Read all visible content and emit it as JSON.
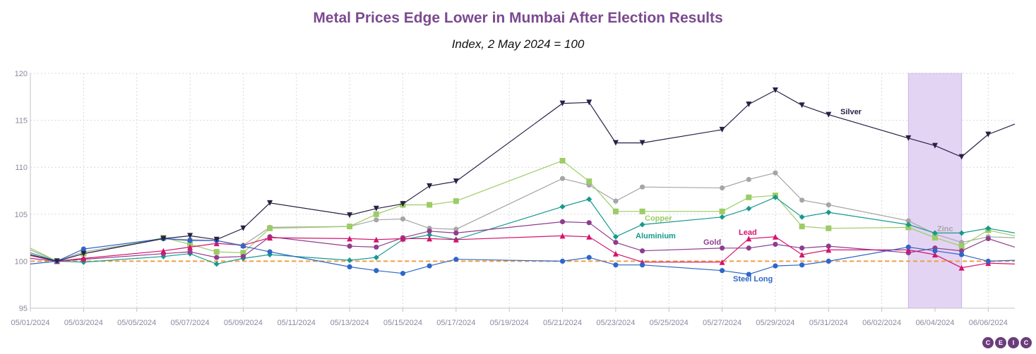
{
  "chart_data": {
    "type": "line",
    "title": "Metal Prices Edge Lower in Mumbai After Election Results",
    "subtitle": "Index, 2 May 2024 = 100",
    "ylim": [
      95,
      120
    ],
    "yticks": [
      95,
      100,
      105,
      110,
      115,
      120
    ],
    "xlim": [
      "05/01/2024",
      "06/07/2024"
    ],
    "xticks": [
      "05/01/2024",
      "05/03/2024",
      "05/05/2024",
      "05/07/2024",
      "05/09/2024",
      "05/11/2024",
      "05/13/2024",
      "05/15/2024",
      "05/17/2024",
      "05/19/2024",
      "05/21/2024",
      "05/23/2024",
      "05/25/2024",
      "05/27/2024",
      "05/29/2024",
      "05/31/2024",
      "06/02/2024",
      "06/04/2024",
      "06/06/2024"
    ],
    "grid": true,
    "reference_line": 100,
    "highlight": [
      "06/03/2024",
      "06/05/2024"
    ],
    "series": [
      {
        "name": "Silver",
        "color": "#2a1f45",
        "marker": "triangle-down",
        "points": [
          [
            "05/01/2024",
            100.7
          ],
          [
            "05/02/2024",
            100
          ],
          [
            "05/03/2024",
            100.8
          ],
          [
            "05/06/2024",
            102.4
          ],
          [
            "05/07/2024",
            102.7
          ],
          [
            "05/08/2024",
            102.3
          ],
          [
            "05/09/2024",
            103.5
          ],
          [
            "05/10/2024",
            106.2
          ],
          [
            "05/13/2024",
            104.9
          ],
          [
            "05/14/2024",
            105.6
          ],
          [
            "05/15/2024",
            106.1
          ],
          [
            "05/16/2024",
            108
          ],
          [
            "05/17/2024",
            108.5
          ],
          [
            "05/21/2024",
            116.8
          ],
          [
            "05/22/2024",
            116.9
          ],
          [
            "05/23/2024",
            112.6
          ],
          [
            "05/24/2024",
            112.6
          ],
          [
            "05/27/2024",
            114
          ],
          [
            "05/28/2024",
            116.7
          ],
          [
            "05/29/2024",
            118.2
          ],
          [
            "05/30/2024",
            116.6
          ],
          [
            "05/31/2024",
            115.6
          ],
          [
            "06/03/2024",
            113.1
          ],
          [
            "06/04/2024",
            112.3
          ],
          [
            "06/05/2024",
            111.1
          ],
          [
            "06/06/2024",
            113.5
          ],
          [
            "06/07/2024",
            114.6
          ]
        ]
      },
      {
        "name": "Copper",
        "color": "#9ccc65",
        "marker": "square",
        "points": [
          [
            "05/01/2024",
            101.4
          ],
          [
            "05/02/2024",
            100
          ],
          [
            "05/03/2024",
            100.8
          ],
          [
            "05/06/2024",
            102.5
          ],
          [
            "05/07/2024",
            101.8
          ],
          [
            "05/08/2024",
            101
          ],
          [
            "05/09/2024",
            100.9
          ],
          [
            "05/10/2024",
            103.5
          ],
          [
            "05/13/2024",
            103.7
          ],
          [
            "05/14/2024",
            105
          ],
          [
            "05/15/2024",
            106
          ],
          [
            "05/16/2024",
            106
          ],
          [
            "05/17/2024",
            106.4
          ],
          [
            "05/21/2024",
            110.7
          ],
          [
            "05/22/2024",
            108.5
          ],
          [
            "05/23/2024",
            105.3
          ],
          [
            "05/24/2024",
            105.3
          ],
          [
            "05/27/2024",
            105.3
          ],
          [
            "05/28/2024",
            106.8
          ],
          [
            "05/29/2024",
            107
          ],
          [
            "05/30/2024",
            103.7
          ],
          [
            "05/31/2024",
            103.5
          ],
          [
            "06/03/2024",
            103.6
          ],
          [
            "06/04/2024",
            102.5
          ],
          [
            "06/05/2024",
            101.6
          ],
          [
            "06/06/2024",
            103.3
          ],
          [
            "06/07/2024",
            102.7
          ]
        ]
      },
      {
        "name": "Zinc",
        "color": "#a6a6a6",
        "marker": "circle",
        "points": [
          [
            "05/01/2024",
            101.2
          ],
          [
            "05/02/2024",
            100
          ],
          [
            "05/03/2024",
            101
          ],
          [
            "05/06/2024",
            102.4
          ],
          [
            "05/07/2024",
            102.3
          ],
          [
            "05/08/2024",
            102.2
          ],
          [
            "05/09/2024",
            101.7
          ],
          [
            "05/10/2024",
            103.6
          ],
          [
            "05/13/2024",
            103.7
          ],
          [
            "05/14/2024",
            104.4
          ],
          [
            "05/15/2024",
            104.5
          ],
          [
            "05/16/2024",
            103.5
          ],
          [
            "05/17/2024",
            103.4
          ],
          [
            "05/21/2024",
            108.8
          ],
          [
            "05/22/2024",
            108.1
          ],
          [
            "05/23/2024",
            106.4
          ],
          [
            "05/24/2024",
            107.9
          ],
          [
            "05/27/2024",
            107.8
          ],
          [
            "05/28/2024",
            108.7
          ],
          [
            "05/29/2024",
            109.4
          ],
          [
            "05/30/2024",
            106.5
          ],
          [
            "05/31/2024",
            106
          ],
          [
            "06/03/2024",
            104.3
          ],
          [
            "06/04/2024",
            102.9
          ],
          [
            "06/05/2024",
            102
          ],
          [
            "06/06/2024",
            102.6
          ],
          [
            "06/07/2024",
            102.5
          ]
        ]
      },
      {
        "name": "Aluminium",
        "color": "#17998f",
        "marker": "diamond",
        "points": [
          [
            "05/01/2024",
            100.9
          ],
          [
            "05/02/2024",
            100
          ],
          [
            "05/03/2024",
            99.9
          ],
          [
            "05/06/2024",
            100.5
          ],
          [
            "05/07/2024",
            100.8
          ],
          [
            "05/08/2024",
            99.7
          ],
          [
            "05/09/2024",
            100.3
          ],
          [
            "05/10/2024",
            100.7
          ],
          [
            "05/13/2024",
            100.1
          ],
          [
            "05/14/2024",
            100.4
          ],
          [
            "05/15/2024",
            102.3
          ],
          [
            "05/16/2024",
            102.8
          ],
          [
            "05/17/2024",
            102.3
          ],
          [
            "05/21/2024",
            105.8
          ],
          [
            "05/22/2024",
            106.6
          ],
          [
            "05/23/2024",
            102.6
          ],
          [
            "05/24/2024",
            103.9
          ],
          [
            "05/27/2024",
            104.7
          ],
          [
            "05/28/2024",
            105.6
          ],
          [
            "05/29/2024",
            106.8
          ],
          [
            "05/30/2024",
            104.7
          ],
          [
            "05/31/2024",
            105.2
          ],
          [
            "06/03/2024",
            103.9
          ],
          [
            "06/04/2024",
            103
          ],
          [
            "06/05/2024",
            103
          ],
          [
            "06/06/2024",
            103.5
          ],
          [
            "06/07/2024",
            103
          ]
        ]
      },
      {
        "name": "Lead",
        "color": "#d6136d",
        "marker": "triangle-up",
        "points": [
          [
            "05/01/2024",
            100.6
          ],
          [
            "05/02/2024",
            100
          ],
          [
            "05/03/2024",
            100.3
          ],
          [
            "05/06/2024",
            101.1
          ],
          [
            "05/07/2024",
            101.5
          ],
          [
            "05/08/2024",
            101.9
          ],
          [
            "05/09/2024",
            101.7
          ],
          [
            "05/10/2024",
            102.5
          ],
          [
            "05/13/2024",
            102.4
          ],
          [
            "05/14/2024",
            102.3
          ],
          [
            "05/15/2024",
            102.4
          ],
          [
            "05/16/2024",
            102.4
          ],
          [
            "05/17/2024",
            102.3
          ],
          [
            "05/21/2024",
            102.7
          ],
          [
            "05/22/2024",
            102.6
          ],
          [
            "05/23/2024",
            100.8
          ],
          [
            "05/24/2024",
            99.9
          ],
          [
            "05/27/2024",
            99.9
          ],
          [
            "05/28/2024",
            102.4
          ],
          [
            "05/29/2024",
            102.6
          ],
          [
            "05/30/2024",
            100.7
          ],
          [
            "05/31/2024",
            101.2
          ],
          [
            "06/03/2024",
            101.2
          ],
          [
            "06/04/2024",
            100.7
          ],
          [
            "06/05/2024",
            99.3
          ],
          [
            "06/06/2024",
            99.8
          ],
          [
            "06/07/2024",
            99.7
          ]
        ]
      },
      {
        "name": "Gold",
        "color": "#8e3d8e",
        "marker": "circle",
        "points": [
          [
            "05/01/2024",
            100.3
          ],
          [
            "05/02/2024",
            100
          ],
          [
            "05/03/2024",
            100.2
          ],
          [
            "05/06/2024",
            100.8
          ],
          [
            "05/07/2024",
            101
          ],
          [
            "05/08/2024",
            100.4
          ],
          [
            "05/09/2024",
            100.5
          ],
          [
            "05/10/2024",
            102.6
          ],
          [
            "05/13/2024",
            101.6
          ],
          [
            "05/14/2024",
            101.5
          ],
          [
            "05/15/2024",
            102.5
          ],
          [
            "05/16/2024",
            103.2
          ],
          [
            "05/17/2024",
            103
          ],
          [
            "05/21/2024",
            104.2
          ],
          [
            "05/22/2024",
            104.1
          ],
          [
            "05/23/2024",
            102
          ],
          [
            "05/24/2024",
            101.1
          ],
          [
            "05/27/2024",
            101.4
          ],
          [
            "05/28/2024",
            101.4
          ],
          [
            "05/29/2024",
            101.8
          ],
          [
            "05/30/2024",
            101.4
          ],
          [
            "05/31/2024",
            101.6
          ],
          [
            "06/03/2024",
            100.9
          ],
          [
            "06/04/2024",
            101.4
          ],
          [
            "06/05/2024",
            101.1
          ],
          [
            "06/06/2024",
            102.4
          ],
          [
            "06/07/2024",
            101.5
          ]
        ]
      },
      {
        "name": "Steel Long",
        "color": "#2f66c9",
        "marker": "circle",
        "points": [
          [
            "05/01/2024",
            99.7
          ],
          [
            "05/02/2024",
            100
          ],
          [
            "05/03/2024",
            101.3
          ],
          [
            "05/06/2024",
            102.4
          ],
          [
            "05/07/2024",
            102.2
          ],
          [
            "05/08/2024",
            102.2
          ],
          [
            "05/09/2024",
            101.6
          ],
          [
            "05/10/2024",
            101
          ],
          [
            "05/13/2024",
            99.4
          ],
          [
            "05/14/2024",
            99
          ],
          [
            "05/15/2024",
            98.7
          ],
          [
            "05/16/2024",
            99.5
          ],
          [
            "05/17/2024",
            100.2
          ],
          [
            "05/21/2024",
            100
          ],
          [
            "05/22/2024",
            100.4
          ],
          [
            "05/23/2024",
            99.6
          ],
          [
            "05/24/2024",
            99.6
          ],
          [
            "05/27/2024",
            99
          ],
          [
            "05/28/2024",
            98.6
          ],
          [
            "05/29/2024",
            99.5
          ],
          [
            "05/30/2024",
            99.6
          ],
          [
            "05/31/2024",
            100
          ],
          [
            "06/03/2024",
            101.5
          ],
          [
            "06/04/2024",
            101.1
          ],
          [
            "06/05/2024",
            100.7
          ],
          [
            "06/06/2024",
            100
          ],
          [
            "06/07/2024",
            100.1
          ]
        ]
      }
    ]
  },
  "logo": [
    "C",
    "E",
    "I",
    "C"
  ],
  "colors": {
    "title": "#7b4a8f",
    "reference": "#f0a040",
    "highlight": "#e3d4f3"
  }
}
